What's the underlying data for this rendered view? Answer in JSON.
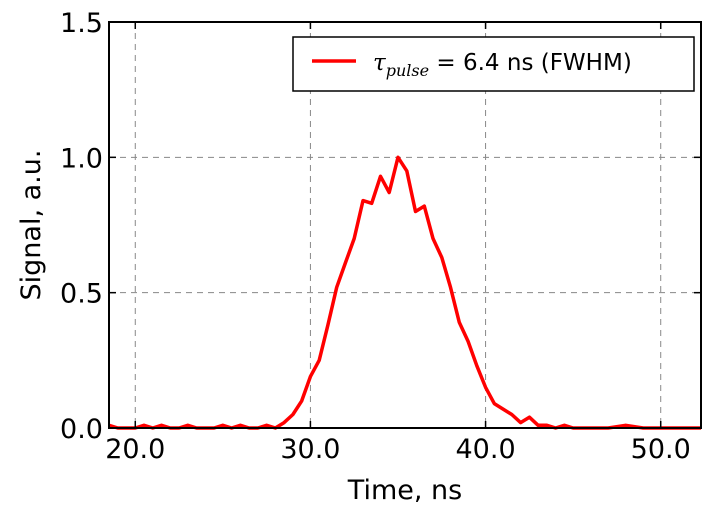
{
  "chart_data": {
    "type": "line",
    "xlabel": "Time, ns",
    "ylabel": "Signal, a.u.",
    "xlim": [
      18.5,
      52.3
    ],
    "ylim": [
      0.0,
      1.5
    ],
    "x_ticks": [
      "20.0",
      "30.0",
      "40.0",
      "50.0"
    ],
    "y_ticks": [
      "0.0",
      "0.5",
      "1.0",
      "1.5"
    ],
    "grid": true,
    "grid_style": "dashed",
    "legend_position": "top-right",
    "series": [
      {
        "name_symbol": "τ",
        "name_subscript": "pulse",
        "name_rest": " = 6.4 ns (FWHM)",
        "color": "#ff0000",
        "x": [
          18.5,
          19.0,
          19.5,
          20.0,
          20.5,
          21.0,
          21.5,
          22.0,
          22.5,
          23.0,
          23.5,
          24.0,
          24.5,
          25.0,
          25.5,
          26.0,
          26.5,
          27.0,
          27.5,
          28.0,
          28.5,
          29.0,
          29.5,
          30.0,
          30.5,
          31.0,
          31.5,
          32.0,
          32.5,
          33.0,
          33.5,
          34.0,
          34.5,
          35.0,
          35.5,
          36.0,
          36.5,
          37.0,
          37.5,
          38.0,
          38.5,
          39.0,
          39.5,
          40.0,
          40.5,
          41.0,
          41.5,
          42.0,
          42.5,
          43.0,
          43.5,
          44.0,
          44.5,
          45.0,
          46.0,
          47.0,
          48.0,
          49.0,
          50.0,
          51.0,
          52.3
        ],
        "y": [
          0.01,
          0.0,
          0.0,
          0.0,
          0.01,
          0.0,
          0.01,
          0.0,
          0.0,
          0.01,
          0.0,
          0.0,
          0.0,
          0.01,
          0.0,
          0.01,
          0.0,
          0.0,
          0.01,
          0.0,
          0.02,
          0.05,
          0.1,
          0.19,
          0.25,
          0.38,
          0.52,
          0.61,
          0.7,
          0.84,
          0.83,
          0.93,
          0.87,
          1.0,
          0.95,
          0.8,
          0.82,
          0.7,
          0.63,
          0.52,
          0.39,
          0.32,
          0.23,
          0.15,
          0.09,
          0.07,
          0.05,
          0.02,
          0.04,
          0.01,
          0.01,
          0.0,
          0.01,
          0.0,
          0.0,
          0.0,
          0.01,
          0.0,
          0.0,
          0.0,
          0.0
        ]
      }
    ]
  }
}
